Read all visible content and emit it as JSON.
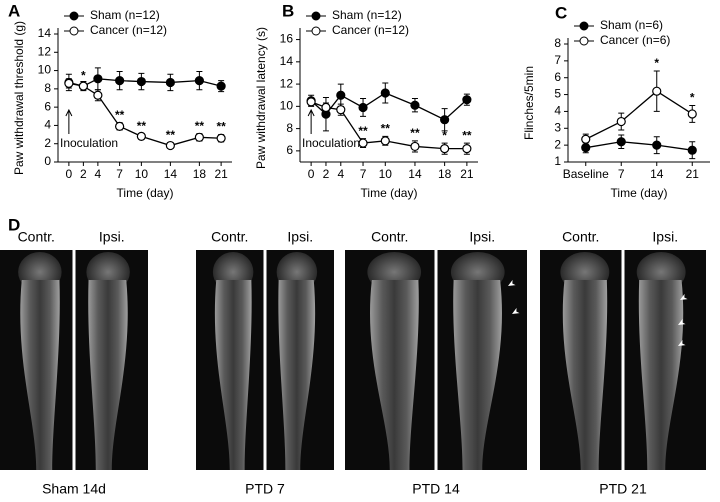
{
  "chart_data": [
    {
      "type": "line",
      "panel": "A",
      "xlabel": "Time (day)",
      "ylabel": "Paw withdrawal threshold (g)",
      "x": [
        0,
        2,
        4,
        7,
        10,
        14,
        18,
        21
      ],
      "xlim": [
        -1.5,
        22.5
      ],
      "xticks": [
        0,
        2,
        4,
        7,
        10,
        14,
        18,
        21
      ],
      "ylim": [
        0,
        14
      ],
      "yticks": [
        0,
        2,
        4,
        6,
        8,
        10,
        12,
        14
      ],
      "series": [
        {
          "name": "Sham (n=12)",
          "color": "#000000",
          "values": [
            8.7,
            8.3,
            9.1,
            8.9,
            8.8,
            8.7,
            8.9,
            8.3
          ],
          "errors": [
            0.9,
            0.5,
            1.2,
            1.0,
            0.9,
            0.9,
            1.0,
            0.6
          ]
        },
        {
          "name": "Cancer (n=12)",
          "color": "#ffffff",
          "values": [
            8.6,
            8.3,
            7.3,
            3.9,
            2.8,
            1.8,
            2.7,
            2.6
          ],
          "errors": [
            0.5,
            0.3,
            0.6,
            0.4,
            0.3,
            0.3,
            0.4,
            0.4
          ]
        }
      ],
      "significance": [
        null,
        "*",
        null,
        "**",
        "**",
        "**",
        "**",
        "**"
      ],
      "annotation": {
        "text": "Inoculation",
        "x": 0
      }
    },
    {
      "type": "line",
      "panel": "B",
      "xlabel": "Time (day)",
      "ylabel": "Paw withdrawal latency (s)",
      "x": [
        0,
        2,
        4,
        7,
        10,
        14,
        18,
        21
      ],
      "xlim": [
        -1.5,
        22.5
      ],
      "xticks": [
        0,
        2,
        4,
        7,
        10,
        14,
        18,
        21
      ],
      "ylim": [
        5,
        16.5
      ],
      "yticks": [
        6,
        8,
        10,
        12,
        14,
        16
      ],
      "series": [
        {
          "name": "Sham (n=12)",
          "color": "#000000",
          "values": [
            10.5,
            9.3,
            11.0,
            9.9,
            11.2,
            10.1,
            8.8,
            10.6
          ],
          "errors": [
            0.5,
            1.5,
            1.0,
            0.8,
            0.9,
            0.6,
            1.0,
            0.5
          ]
        },
        {
          "name": "Cancer (n=12)",
          "color": "#ffffff",
          "values": [
            10.4,
            9.9,
            9.7,
            6.7,
            6.9,
            6.4,
            6.2,
            6.2
          ],
          "errors": [
            0.3,
            0.4,
            0.5,
            0.4,
            0.4,
            0.5,
            0.5,
            0.5
          ]
        }
      ],
      "significance": [
        null,
        null,
        null,
        "**",
        "**",
        "**",
        "*",
        "**"
      ],
      "annotation": {
        "text": "Inoculation",
        "x": 0
      }
    },
    {
      "type": "line",
      "panel": "C",
      "xlabel": "Time (day)",
      "ylabel": "Flinches/5min",
      "categories": [
        "Baseline",
        "7",
        "14",
        "21"
      ],
      "ylim": [
        1,
        8
      ],
      "yticks": [
        1,
        2,
        3,
        4,
        5,
        6,
        7,
        8
      ],
      "series": [
        {
          "name": "Sham (n=6)",
          "color": "#000000",
          "values": [
            1.85,
            2.2,
            2.0,
            1.7
          ],
          "errors": [
            0.3,
            0.4,
            0.5,
            0.5
          ]
        },
        {
          "name": "Cancer (n=6)",
          "color": "#ffffff",
          "values": [
            2.35,
            3.4,
            5.2,
            3.85
          ],
          "errors": [
            0.3,
            0.5,
            1.2,
            0.5
          ]
        }
      ],
      "significance": [
        null,
        null,
        "*",
        "*"
      ]
    }
  ],
  "panel_d": {
    "label": "D",
    "panels": [
      {
        "left": "Contr.",
        "right": "Ipsi.",
        "caption": "Sham 14d"
      },
      {
        "left": "Contr.",
        "right": "Ipsi.",
        "caption": "PTD 7"
      },
      {
        "left": "Contr.",
        "right": "Ipsi.",
        "caption": "PTD 14"
      },
      {
        "left": "Contr.",
        "right": "Ipsi.",
        "caption": "PTD 21"
      }
    ]
  }
}
